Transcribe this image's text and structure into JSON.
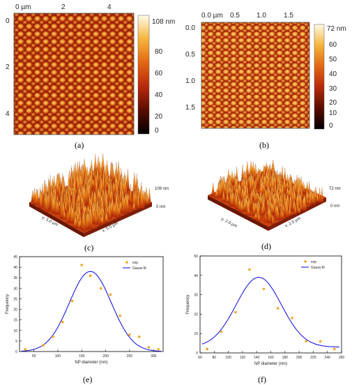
{
  "captions": {
    "a": "(a)",
    "b": "(b)",
    "c": "(c)",
    "d": "(d)",
    "e": "(e)",
    "f": "(f)"
  },
  "panel_a": {
    "x_ticks": [
      "0 µm",
      "2",
      "4"
    ],
    "y_ticks": [
      "0",
      "2",
      "4"
    ],
    "colorbar_ticks": [
      "108 nm",
      "80",
      "60",
      "40",
      "20",
      "0"
    ]
  },
  "panel_b": {
    "x_ticks": [
      "0.0 µm",
      "0.5",
      "1.0",
      "1.5"
    ],
    "y_ticks": [
      "0.0",
      "0.5",
      "1.0",
      "1.5"
    ],
    "colorbar_ticks": [
      "72 nm",
      "60",
      "50",
      "40",
      "30",
      "20",
      "10",
      "0"
    ]
  },
  "panel_c": {
    "top_label": "108 nm",
    "bottom_label": "0 nm",
    "y_axis": "y: 5.0 µm",
    "x_axis": "x: 5.0 µm"
  },
  "panel_d": {
    "top_label": "72 nm",
    "bottom_label": "0 nm",
    "y_axis": "y: 2.0 µm",
    "x_axis": "x: 2.0 µm"
  },
  "chart_data": [
    {
      "type": "scatter",
      "panel": "e",
      "xlabel": "NP diameter (nm)",
      "ylabel": "Frequency",
      "xlim": [
        20,
        320
      ],
      "ylim": [
        0,
        45
      ],
      "x_ticks": [
        50,
        100,
        150,
        200,
        250,
        300
      ],
      "y_ticks": [
        0,
        5,
        10,
        15,
        20,
        25,
        30,
        35,
        40,
        45
      ],
      "legend": [
        "exp",
        "Gauss fit"
      ],
      "series": [
        {
          "name": "exp",
          "x": [
            32,
            70,
            90,
            110,
            130,
            150,
            168,
            190,
            210,
            230,
            250,
            270,
            290,
            310
          ],
          "y": [
            1,
            3,
            7,
            14,
            24,
            41,
            36,
            30,
            27,
            17,
            8,
            7,
            2,
            1
          ]
        },
        {
          "name": "Gauss fit",
          "center": 168,
          "sigma": 44,
          "amplitude": 38,
          "offset": 0
        }
      ]
    },
    {
      "type": "scatter",
      "panel": "f",
      "xlabel": "NP diameter (nm)",
      "ylabel": "Frequency",
      "xlim": [
        60,
        260
      ],
      "ylim": [
        0,
        50
      ],
      "x_ticks": [
        60,
        80,
        100,
        120,
        140,
        160,
        180,
        200,
        220,
        240,
        260
      ],
      "y_ticks": [
        0,
        10,
        20,
        30,
        40,
        50
      ],
      "legend": [
        "exp",
        "Gauss fit"
      ],
      "series": [
        {
          "name": "exp",
          "x": [
            70,
            90,
            110,
            130,
            150,
            170,
            190,
            210,
            230,
            250
          ],
          "y": [
            2,
            11,
            21,
            43,
            33,
            23,
            18,
            6,
            6,
            2
          ]
        },
        {
          "name": "Gauss fit",
          "center": 143,
          "sigma": 32,
          "amplitude": 36,
          "offset": 3
        }
      ]
    }
  ]
}
